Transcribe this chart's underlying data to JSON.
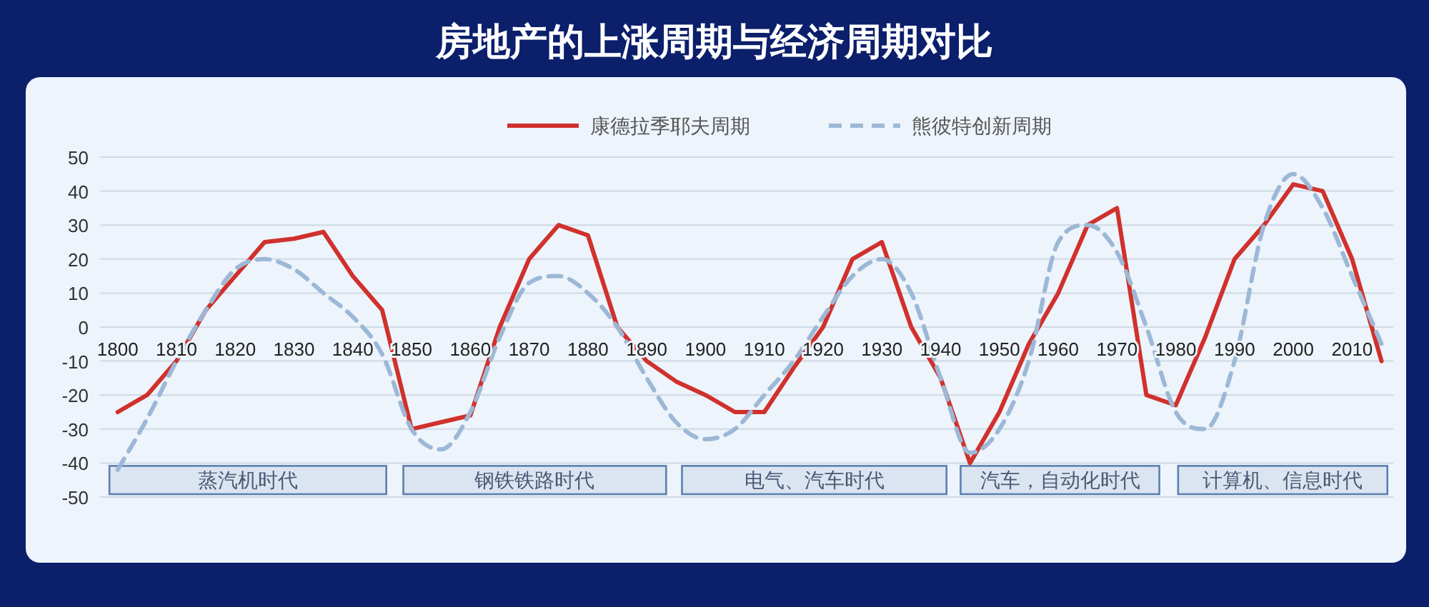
{
  "chart_data": {
    "type": "line",
    "title": "房地产的上涨周期与经济周期对比",
    "x": [
      1800,
      1805,
      1810,
      1815,
      1820,
      1825,
      1830,
      1835,
      1840,
      1845,
      1850,
      1855,
      1860,
      1865,
      1870,
      1875,
      1880,
      1885,
      1890,
      1895,
      1900,
      1905,
      1910,
      1915,
      1920,
      1925,
      1930,
      1935,
      1940,
      1945,
      1950,
      1955,
      1960,
      1965,
      1970,
      1975,
      1980,
      1985,
      1990,
      1995,
      2000,
      2005,
      2010,
      2015
    ],
    "series": [
      {
        "name": "康德拉季耶夫周期",
        "color": "#d0312d",
        "line_style": "solid",
        "values": [
          -25,
          -20,
          -10,
          5,
          15,
          25,
          26,
          28,
          15,
          5,
          -30,
          -28,
          -26,
          0,
          20,
          30,
          27,
          0,
          -10,
          -16,
          -20,
          -25,
          -25,
          -12,
          0,
          20,
          25,
          0,
          -15,
          -40,
          -25,
          -5,
          10,
          30,
          35,
          -20,
          -23,
          -3,
          20,
          30,
          42,
          40,
          20,
          -10
        ]
      },
      {
        "name": "熊彼特创新周期",
        "color": "#9db8d6",
        "line_style": "dashed",
        "values": [
          -42,
          -27,
          -10,
          5,
          17,
          20,
          17,
          10,
          3,
          -8,
          -30,
          -36,
          -25,
          -3,
          13,
          15,
          10,
          0,
          -15,
          -28,
          -33,
          -30,
          -20,
          -10,
          3,
          15,
          20,
          10,
          -15,
          -37,
          -30,
          -10,
          25,
          30,
          22,
          0,
          -25,
          -30,
          -10,
          30,
          45,
          35,
          15,
          -5
        ]
      }
    ],
    "xlim": [
      1797,
      2017
    ],
    "xticks": [
      1800,
      1810,
      1820,
      1830,
      1840,
      1850,
      1860,
      1870,
      1880,
      1890,
      1900,
      1910,
      1920,
      1930,
      1940,
      1950,
      1960,
      1970,
      1980,
      1990,
      2000,
      2010
    ],
    "ylim": [
      -50,
      50
    ],
    "yticks": [
      -50,
      -40,
      -30,
      -20,
      -10,
      0,
      10,
      20,
      30,
      40,
      50
    ],
    "grid": "y",
    "legend": "top",
    "marker": "none",
    "bands": [
      {
        "axis": "x",
        "from": 1798.6,
        "to": 1845.7,
        "label": "蒸汽机时代",
        "color": "#5b7fb0"
      },
      {
        "axis": "x",
        "from": 1848.6,
        "to": 1893.3,
        "label": "钢铁铁路时代",
        "color": "#5b7fb0"
      },
      {
        "axis": "x",
        "from": 1896,
        "to": 1941,
        "label": "电气、汽车时代",
        "color": "#5b7fb0"
      },
      {
        "axis": "x",
        "from": 1943.4,
        "to": 1977.2,
        "label": "汽车，自动化时代",
        "color": "#5b7fb0"
      },
      {
        "axis": "x",
        "from": 1980.4,
        "to": 2016,
        "label": "计算机、信息时代",
        "color": "#5b7fb0"
      }
    ]
  }
}
